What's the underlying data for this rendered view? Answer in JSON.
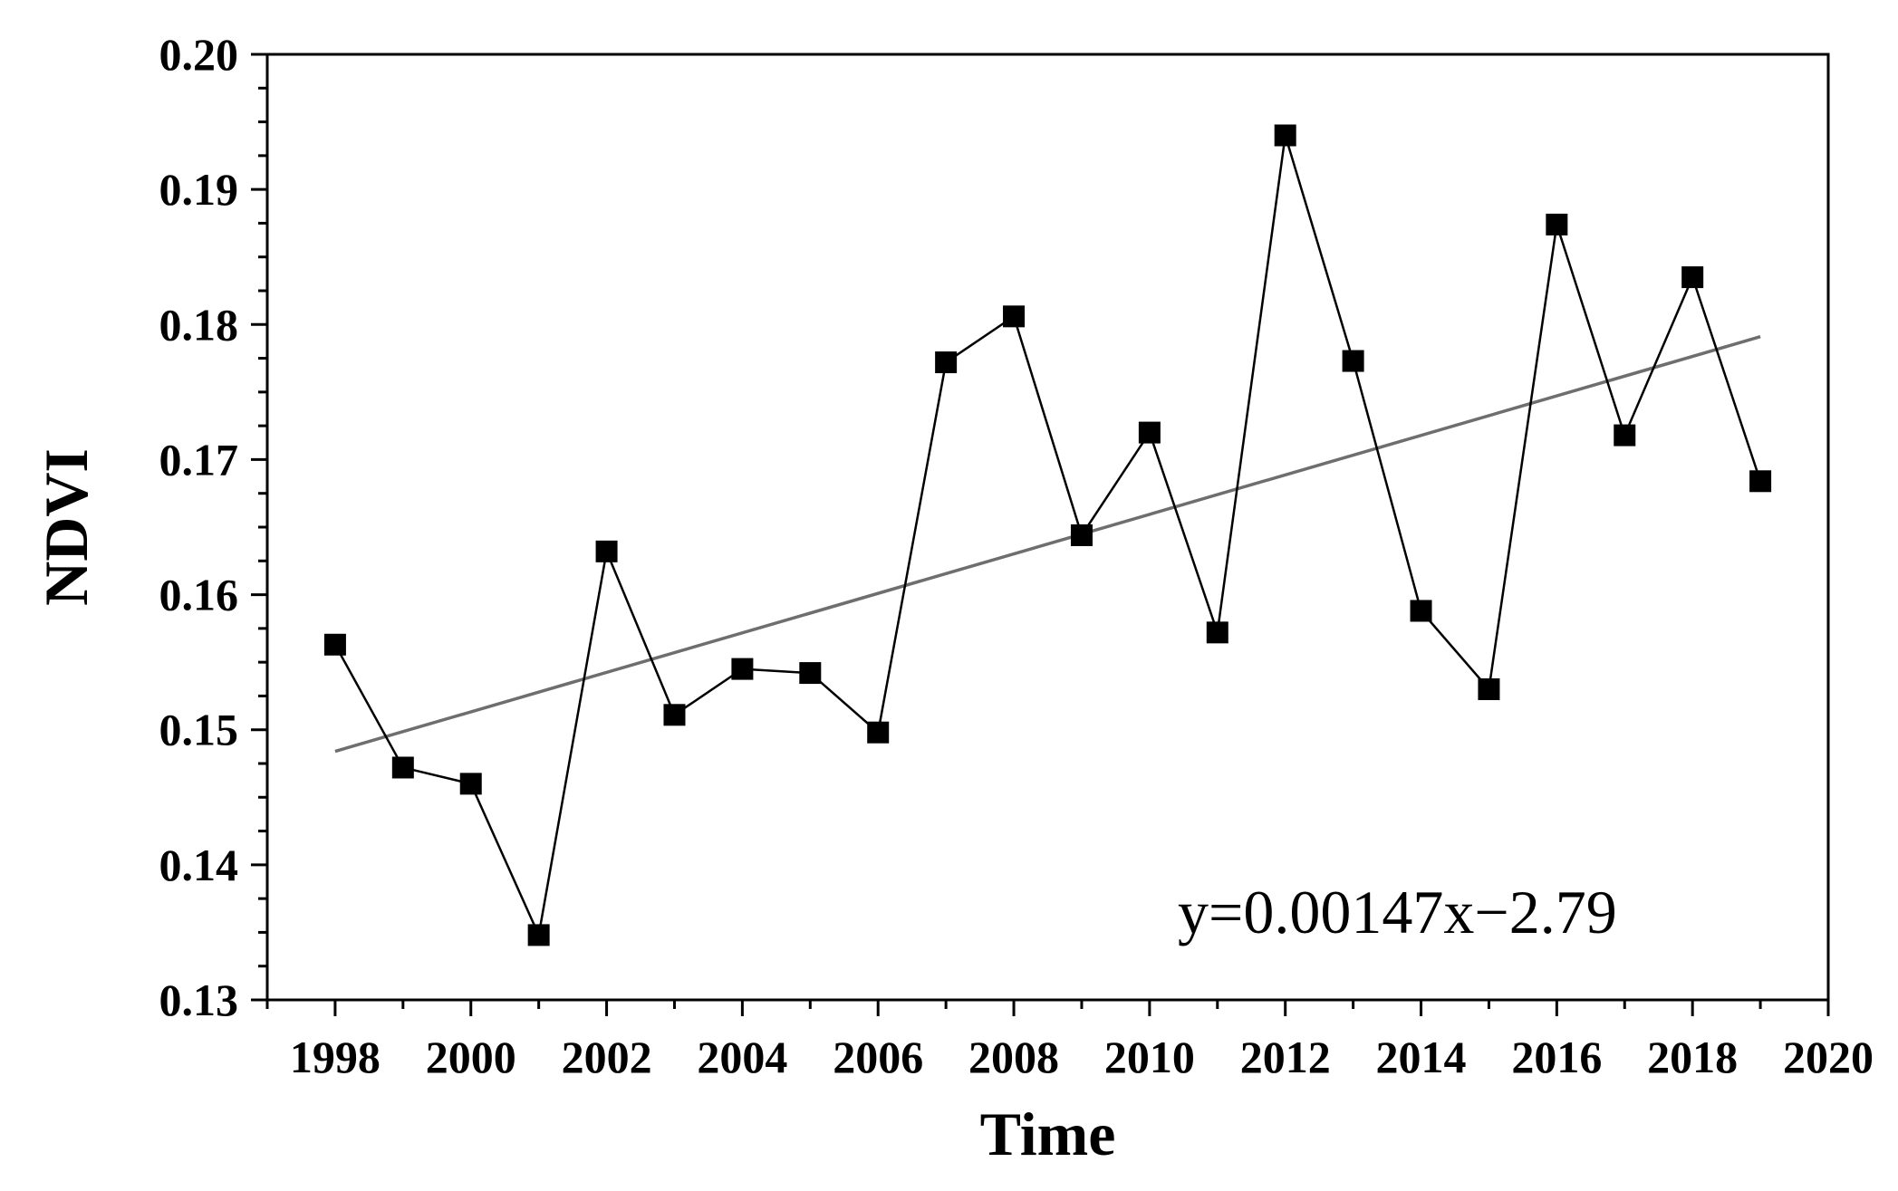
{
  "chart_data": {
    "type": "line",
    "title": "",
    "xlabel": "Time",
    "ylabel": "NDVI",
    "xlim": [
      1997,
      2020
    ],
    "ylim": [
      0.13,
      0.2
    ],
    "x_ticks": [
      1998,
      2000,
      2002,
      2004,
      2006,
      2008,
      2010,
      2012,
      2014,
      2016,
      2018,
      2020
    ],
    "x_tick_labels": [
      "1998",
      "2000",
      "2002",
      "2004",
      "2006",
      "2008",
      "2010",
      "2012",
      "2014",
      "2016",
      "2018",
      "2020"
    ],
    "y_ticks": [
      0.13,
      0.14,
      0.15,
      0.16,
      0.17,
      0.18,
      0.19,
      0.2
    ],
    "y_tick_labels": [
      "0.13",
      "0.14",
      "0.15",
      "0.16",
      "0.17",
      "0.18",
      "0.19",
      "0.20"
    ],
    "grid": false,
    "legend": "none",
    "series": [
      {
        "marker": "square",
        "color": "#000000",
        "x": [
          1998,
          1999,
          2000,
          2001,
          2002,
          2003,
          2004,
          2005,
          2006,
          2007,
          2008,
          2009,
          2010,
          2011,
          2012,
          2013,
          2014,
          2015,
          2016,
          2017,
          2018,
          2019
        ],
        "y": [
          0.1563,
          0.1472,
          0.146,
          0.1348,
          0.1632,
          0.1511,
          0.1545,
          0.1542,
          0.1498,
          0.1772,
          0.1806,
          0.1644,
          0.172,
          0.1572,
          0.194,
          0.1773,
          0.1588,
          0.153,
          0.1874,
          0.1718,
          0.1835,
          0.1684
        ]
      }
    ],
    "trendline": {
      "color": "#6e6e6e",
      "x": [
        1998,
        2019
      ],
      "y": [
        0.1484,
        0.1791
      ]
    },
    "annotation": {
      "text": "y=0.00147x−2.79"
    }
  }
}
